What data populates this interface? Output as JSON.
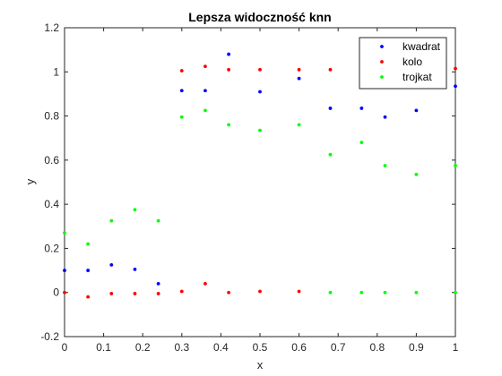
{
  "chart_data": {
    "type": "scatter",
    "title": "Lepsza widoczność knn",
    "xlabel": "x",
    "ylabel": "y",
    "xlim": [
      0,
      1
    ],
    "ylim": [
      -0.2,
      1.2
    ],
    "xticks": [
      "0",
      "0.1",
      "0.2",
      "0.3",
      "0.4",
      "0.5",
      "0.6",
      "0.7",
      "0.8",
      "0.9",
      "1"
    ],
    "yticks": [
      "-0.2",
      "0",
      "0.2",
      "0.4",
      "0.6",
      "0.8",
      "1",
      "1.2"
    ],
    "grid": false,
    "legend_position": "top-right",
    "series": [
      {
        "name": "kwadrat",
        "color": "#0000ff",
        "points": [
          [
            0.0,
            0.1
          ],
          [
            0.06,
            0.1
          ],
          [
            0.12,
            0.125
          ],
          [
            0.18,
            0.105
          ],
          [
            0.24,
            0.04
          ],
          [
            0.3,
            0.915
          ],
          [
            0.36,
            0.915
          ],
          [
            0.42,
            1.08
          ],
          [
            0.5,
            0.91
          ],
          [
            0.6,
            0.97
          ],
          [
            0.68,
            0.835
          ],
          [
            0.76,
            0.835
          ],
          [
            0.82,
            0.795
          ],
          [
            0.9,
            0.825
          ],
          [
            1.0,
            0.935
          ]
        ]
      },
      {
        "name": "kolo",
        "color": "#ff0000",
        "points": [
          [
            0.0,
            0.0
          ],
          [
            0.06,
            -0.02
          ],
          [
            0.12,
            -0.005
          ],
          [
            0.18,
            -0.005
          ],
          [
            0.24,
            -0.005
          ],
          [
            0.3,
            1.005
          ],
          [
            0.36,
            1.025
          ],
          [
            0.42,
            1.01
          ],
          [
            0.5,
            1.01
          ],
          [
            0.6,
            1.01
          ],
          [
            0.68,
            1.01
          ],
          [
            0.76,
            1.05
          ],
          [
            0.82,
            1.01
          ],
          [
            0.9,
            1.02
          ],
          [
            1.0,
            1.015
          ],
          [
            0.3,
            0.005
          ],
          [
            0.36,
            0.04
          ],
          [
            0.42,
            0.0
          ],
          [
            0.5,
            0.005
          ],
          [
            0.6,
            0.005
          ]
        ]
      },
      {
        "name": "trojkat",
        "color": "#00ff00",
        "points": [
          [
            0.0,
            0.27
          ],
          [
            0.06,
            0.22
          ],
          [
            0.12,
            0.325
          ],
          [
            0.18,
            0.375
          ],
          [
            0.24,
            0.325
          ],
          [
            0.3,
            0.795
          ],
          [
            0.36,
            0.825
          ],
          [
            0.42,
            0.76
          ],
          [
            0.5,
            0.735
          ],
          [
            0.6,
            0.76
          ],
          [
            0.68,
            0.625
          ],
          [
            0.76,
            0.68
          ],
          [
            0.82,
            0.575
          ],
          [
            0.9,
            0.535
          ],
          [
            1.0,
            0.575
          ],
          [
            0.68,
            0.0
          ],
          [
            0.76,
            0.0
          ],
          [
            0.82,
            0.0
          ],
          [
            0.9,
            0.0
          ],
          [
            1.0,
            0.0
          ]
        ]
      }
    ]
  }
}
